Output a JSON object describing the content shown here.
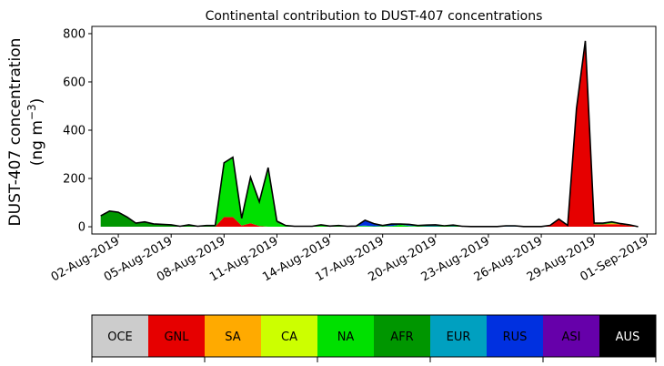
{
  "chart_data": {
    "type": "area",
    "title": "Continental contribution to DUST-407 concentrations",
    "ylabel_line1": "DUST-407 concentration",
    "ylabel_line2_prefix": "(ng m",
    "ylabel_line2_sup": "−3",
    "ylabel_line2_suffix": ")",
    "xlabel": "",
    "xlim": [
      "2019-07-31T12:00",
      "2019-09-01T12:00"
    ],
    "ylim": [
      -30,
      830
    ],
    "yticks": [
      0,
      200,
      400,
      600,
      800
    ],
    "xticks": [
      {
        "date": "2019-08-02",
        "label": "02-Aug-2019"
      },
      {
        "date": "2019-08-05",
        "label": "05-Aug-2019"
      },
      {
        "date": "2019-08-08",
        "label": "08-Aug-2019"
      },
      {
        "date": "2019-08-11",
        "label": "11-Aug-2019"
      },
      {
        "date": "2019-08-14",
        "label": "14-Aug-2019"
      },
      {
        "date": "2019-08-17",
        "label": "17-Aug-2019"
      },
      {
        "date": "2019-08-20",
        "label": "20-Aug-2019"
      },
      {
        "date": "2019-08-23",
        "label": "23-Aug-2019"
      },
      {
        "date": "2019-08-26",
        "label": "26-Aug-2019"
      },
      {
        "date": "2019-08-29",
        "label": "29-Aug-2019"
      },
      {
        "date": "2019-09-01",
        "label": "01-Sep-2019"
      }
    ],
    "x": [
      "2019-08-01T00:00",
      "2019-08-01T12:00",
      "2019-08-02T00:00",
      "2019-08-02T12:00",
      "2019-08-03T00:00",
      "2019-08-03T12:00",
      "2019-08-04T00:00",
      "2019-08-04T12:00",
      "2019-08-05T00:00",
      "2019-08-05T12:00",
      "2019-08-06T00:00",
      "2019-08-06T12:00",
      "2019-08-07T00:00",
      "2019-08-07T12:00",
      "2019-08-08T00:00",
      "2019-08-08T12:00",
      "2019-08-09T00:00",
      "2019-08-09T12:00",
      "2019-08-10T00:00",
      "2019-08-10T12:00",
      "2019-08-11T00:00",
      "2019-08-11T12:00",
      "2019-08-12T00:00",
      "2019-08-12T12:00",
      "2019-08-13T00:00",
      "2019-08-13T12:00",
      "2019-08-14T00:00",
      "2019-08-14T12:00",
      "2019-08-15T00:00",
      "2019-08-15T12:00",
      "2019-08-16T00:00",
      "2019-08-16T12:00",
      "2019-08-17T00:00",
      "2019-08-17T12:00",
      "2019-08-18T00:00",
      "2019-08-18T12:00",
      "2019-08-19T00:00",
      "2019-08-19T12:00",
      "2019-08-20T00:00",
      "2019-08-20T12:00",
      "2019-08-21T00:00",
      "2019-08-21T12:00",
      "2019-08-22T00:00",
      "2019-08-22T12:00",
      "2019-08-23T00:00",
      "2019-08-23T12:00",
      "2019-08-24T00:00",
      "2019-08-24T12:00",
      "2019-08-25T00:00",
      "2019-08-25T12:00",
      "2019-08-26T00:00",
      "2019-08-26T12:00",
      "2019-08-27T00:00",
      "2019-08-27T12:00",
      "2019-08-28T00:00",
      "2019-08-28T12:00",
      "2019-08-29T00:00",
      "2019-08-29T12:00",
      "2019-08-30T00:00",
      "2019-08-30T12:00",
      "2019-08-31T00:00",
      "2019-08-31T12:00"
    ],
    "series": [
      {
        "name": "OCE",
        "color": "#cccccc",
        "values": [
          0,
          0,
          0,
          0,
          0,
          0,
          0,
          0,
          0,
          0,
          0,
          0,
          0,
          0,
          0,
          0,
          0,
          0,
          0,
          0,
          0,
          0,
          0,
          0,
          0,
          0,
          0,
          0,
          0,
          0,
          0,
          0,
          0,
          0,
          0,
          0,
          0,
          0,
          0,
          0,
          0,
          0,
          0,
          0,
          0,
          0,
          0,
          0,
          0,
          0,
          0,
          0,
          0,
          0,
          0,
          0,
          0,
          0,
          0,
          0,
          0,
          0
        ]
      },
      {
        "name": "GNL",
        "color": "#e60000",
        "values": [
          0,
          0,
          0,
          0,
          0,
          0,
          0,
          0,
          0,
          0,
          0,
          0,
          0,
          0,
          40,
          40,
          5,
          15,
          3,
          0,
          0,
          0,
          0,
          0,
          0,
          0,
          0,
          0,
          0,
          0,
          0,
          0,
          0,
          0,
          0,
          0,
          0,
          0,
          0,
          0,
          0,
          0,
          0,
          0,
          0,
          0,
          0,
          0,
          0,
          0,
          0,
          5,
          30,
          5,
          480,
          760,
          10,
          10,
          10,
          10,
          5,
          0
        ]
      },
      {
        "name": "SA",
        "color": "#ffaa00",
        "values": [
          0,
          0,
          0,
          0,
          0,
          0,
          0,
          0,
          0,
          0,
          0,
          0,
          0,
          0,
          0,
          0,
          0,
          0,
          0,
          0,
          0,
          0,
          0,
          0,
          0,
          0,
          0,
          0,
          0,
          0,
          0,
          0,
          0,
          0,
          0,
          0,
          0,
          0,
          0,
          0,
          0,
          0,
          0,
          0,
          0,
          0,
          0,
          0,
          0,
          0,
          0,
          0,
          0,
          0,
          0,
          0,
          0,
          0,
          5,
          0,
          0,
          0
        ]
      },
      {
        "name": "CA",
        "color": "#ccff00",
        "values": [
          0,
          0,
          0,
          0,
          0,
          0,
          0,
          0,
          0,
          0,
          0,
          0,
          0,
          0,
          0,
          0,
          0,
          0,
          0,
          0,
          0,
          0,
          0,
          0,
          0,
          0,
          0,
          0,
          0,
          0,
          0,
          0,
          0,
          0,
          0,
          0,
          0,
          0,
          0,
          0,
          0,
          0,
          0,
          0,
          0,
          0,
          0,
          0,
          0,
          0,
          0,
          0,
          0,
          0,
          0,
          0,
          0,
          0,
          0,
          0,
          0,
          0
        ]
      },
      {
        "name": "NA",
        "color": "#00e000",
        "values": [
          0,
          0,
          0,
          0,
          0,
          0,
          0,
          0,
          0,
          0,
          0,
          0,
          0,
          0,
          225,
          248,
          30,
          190,
          100,
          245,
          15,
          5,
          2,
          2,
          2,
          8,
          3,
          5,
          2,
          3,
          3,
          2,
          3,
          3,
          8,
          3,
          3,
          2,
          2,
          2,
          2,
          2,
          1,
          1,
          1,
          1,
          1,
          1,
          1,
          1,
          1,
          1,
          2,
          1,
          10,
          10,
          5,
          5,
          5,
          3,
          3,
          0
        ]
      },
      {
        "name": "AFR",
        "color": "#009600",
        "values": [
          45,
          65,
          60,
          40,
          15,
          20,
          12,
          10,
          8,
          2,
          8,
          2,
          5,
          5,
          0,
          0,
          0,
          0,
          0,
          0,
          8,
          0,
          0,
          0,
          0,
          0,
          0,
          0,
          0,
          0,
          0,
          0,
          0,
          0,
          0,
          0,
          0,
          0,
          0,
          0,
          0,
          0,
          0,
          0,
          0,
          0,
          0,
          0,
          0,
          0,
          0,
          0,
          0,
          0,
          0,
          0,
          0,
          0,
          0,
          0,
          0,
          0
        ]
      },
      {
        "name": "EUR",
        "color": "#00a0c0",
        "values": [
          0,
          0,
          0,
          0,
          0,
          0,
          0,
          0,
          0,
          0,
          0,
          0,
          0,
          0,
          0,
          0,
          0,
          0,
          0,
          0,
          0,
          0,
          0,
          0,
          0,
          0,
          0,
          0,
          0,
          0,
          2,
          0,
          0,
          0,
          0,
          2,
          0,
          0,
          0,
          0,
          0,
          0,
          0,
          0,
          0,
          0,
          0,
          0,
          0,
          0,
          0,
          0,
          0,
          0,
          0,
          0,
          0,
          0,
          0,
          0,
          0,
          0
        ]
      },
      {
        "name": "RUS",
        "color": "#0030e0",
        "values": [
          0,
          0,
          0,
          0,
          0,
          0,
          0,
          0,
          0,
          0,
          0,
          0,
          0,
          0,
          0,
          0,
          0,
          0,
          0,
          0,
          0,
          0,
          0,
          0,
          0,
          0,
          0,
          0,
          0,
          0,
          22,
          8,
          2,
          8,
          3,
          5,
          2,
          5,
          3,
          2,
          5,
          0,
          0,
          0,
          0,
          0,
          3,
          3,
          0,
          0,
          0,
          0,
          0,
          0,
          0,
          0,
          0,
          0,
          0,
          0,
          0,
          0
        ]
      },
      {
        "name": "ASI",
        "color": "#6600aa",
        "values": [
          0,
          0,
          0,
          0,
          0,
          0,
          0,
          0,
          0,
          0,
          0,
          0,
          0,
          0,
          0,
          0,
          0,
          0,
          0,
          0,
          0,
          0,
          0,
          0,
          0,
          0,
          0,
          0,
          0,
          0,
          0,
          3,
          0,
          0,
          0,
          0,
          0,
          0,
          3,
          0,
          0,
          0,
          0,
          0,
          0,
          0,
          0,
          0,
          0,
          0,
          0,
          0,
          0,
          0,
          0,
          0,
          0,
          0,
          0,
          0,
          0,
          0
        ]
      },
      {
        "name": "AUS",
        "color": "#000000",
        "values": [
          0,
          0,
          0,
          0,
          0,
          0,
          0,
          0,
          0,
          0,
          0,
          0,
          0,
          0,
          0,
          0,
          0,
          0,
          0,
          0,
          0,
          0,
          0,
          0,
          0,
          0,
          0,
          0,
          0,
          0,
          0,
          0,
          0,
          0,
          0,
          0,
          0,
          0,
          0,
          0,
          0,
          0,
          0,
          0,
          0,
          0,
          0,
          0,
          0,
          0,
          0,
          0,
          0,
          0,
          0,
          0,
          0,
          0,
          0,
          0,
          0,
          0
        ]
      }
    ],
    "legend_placement": "bottom",
    "grid": false
  }
}
